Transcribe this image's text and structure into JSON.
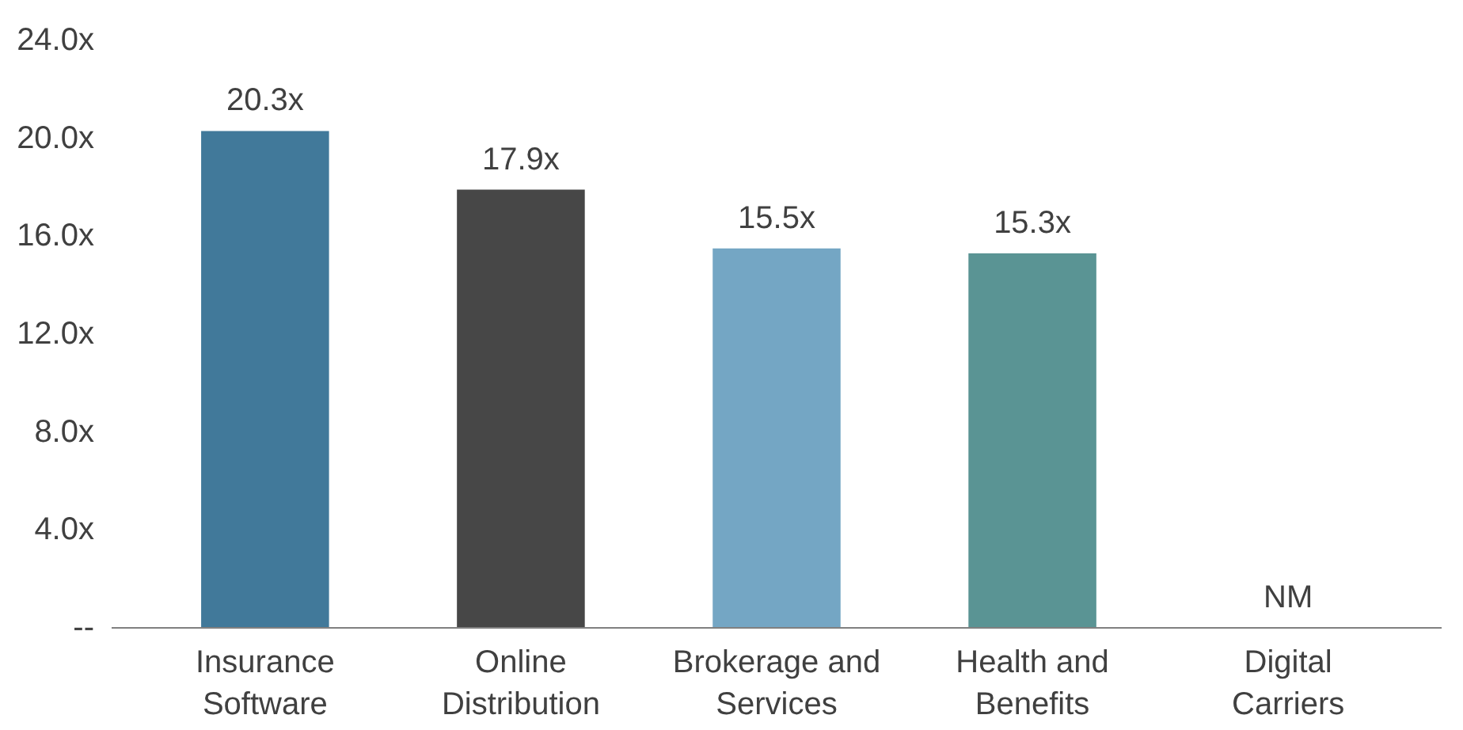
{
  "chart_data": {
    "type": "bar",
    "categories": [
      "Insurance Software",
      "Online Distribution",
      "Brokerage and Services",
      "Health and Benefits",
      "Digital Carriers"
    ],
    "values": [
      20.3,
      17.9,
      15.5,
      15.3,
      null
    ],
    "colors": [
      "#41799a",
      "#474747",
      "#74a6c4",
      "#5a9494",
      null
    ],
    "value_labels": [
      "20.3x",
      "17.9x",
      "15.5x",
      "15.3x",
      "NM"
    ],
    "ylim": [
      0,
      24
    ],
    "yticks": [
      {
        "value": 0,
        "label": "--"
      },
      {
        "value": 4,
        "label": "4.0x"
      },
      {
        "value": 8,
        "label": "8.0x"
      },
      {
        "value": 12,
        "label": "12.0x"
      },
      {
        "value": 16,
        "label": "16.0x"
      },
      {
        "value": 20,
        "label": "20.0x"
      },
      {
        "value": 24,
        "label": "24.0x"
      }
    ],
    "grid": false
  }
}
